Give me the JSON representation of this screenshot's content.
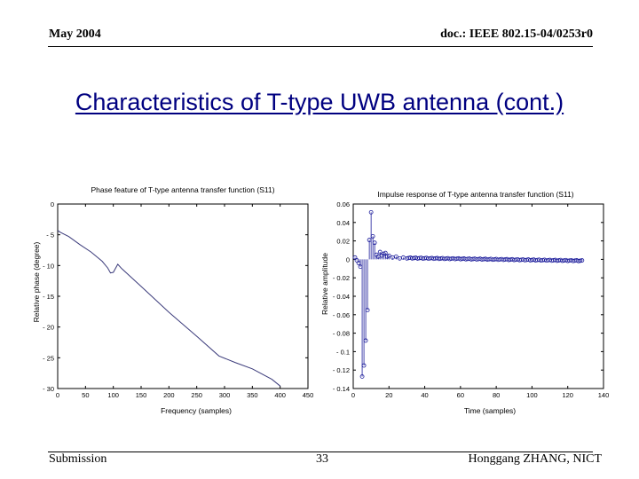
{
  "header": {
    "left": "May 2004",
    "right": "doc.: IEEE 802.15-04/0253r0"
  },
  "slide_title": "Characteristics of T-type UWB antenna (cont.)",
  "footer": {
    "left": "Submission",
    "center": "33",
    "right": "Honggang ZHANG, NICT"
  },
  "colors": {
    "title": "#000080",
    "phase_line": "#3a3a7a",
    "impulse": "#1a1a9a"
  },
  "chart_data": [
    {
      "type": "line",
      "title": "Phase feature of T-type antenna transfer function (S11)",
      "xlabel": "Frequency (samples)",
      "ylabel": "Relative phase (degree)",
      "xlim": [
        0,
        450
      ],
      "ylim": [
        -30,
        0
      ],
      "xticks": [
        0,
        50,
        100,
        150,
        200,
        250,
        300,
        350,
        400,
        450
      ],
      "yticks": [
        0,
        -5,
        -10,
        -15,
        -20,
        -25,
        -30
      ],
      "grid": false,
      "series": [
        {
          "x": [
            0,
            5,
            20,
            40,
            60,
            80,
            90,
            95,
            100,
            108,
            115,
            150,
            200,
            250,
            290,
            320,
            350,
            385,
            400
          ],
          "y": [
            -4.3,
            -4.6,
            -5.3,
            -6.6,
            -7.8,
            -9.3,
            -10.4,
            -11.2,
            -11.1,
            -9.8,
            -10.5,
            -13.4,
            -17.6,
            -21.5,
            -24.7,
            -25.8,
            -26.8,
            -28.5,
            -29.6
          ]
        }
      ]
    },
    {
      "type": "stem",
      "title": "Impulse response of T-type antenna transfer function (S11)",
      "xlabel": "Time (samples)",
      "ylabel": "Relative amplitude",
      "xlim": [
        0,
        140
      ],
      "ylim": [
        -0.14,
        0.06
      ],
      "xticks": [
        0,
        20,
        40,
        60,
        80,
        100,
        120,
        140
      ],
      "yticks": [
        0.06,
        0.04,
        0.02,
        0,
        -0.02,
        -0.04,
        -0.06,
        -0.08,
        -0.1,
        -0.12,
        -0.14
      ],
      "grid": false,
      "series": [
        {
          "x": [
            1,
            2,
            3,
            4,
            5,
            6,
            7,
            8,
            9,
            10,
            11,
            12,
            13,
            14,
            15,
            16,
            17,
            18,
            19,
            20,
            22,
            24,
            26,
            28,
            30
          ],
          "y": [
            0.002,
            -0.001,
            -0.004,
            -0.008,
            -0.127,
            -0.115,
            -0.088,
            -0.055,
            0.021,
            0.051,
            0.025,
            0.018,
            0.005,
            0.003,
            0.008,
            0.004,
            0.006,
            0.007,
            0.003,
            0.004,
            0.002,
            0.003,
            0.001,
            0.002,
            0.001
          ]
        }
      ],
      "tail": {
        "x_start": 31,
        "x_end": 128,
        "y_start": 0.0015,
        "y_end": -0.0015
      }
    }
  ]
}
